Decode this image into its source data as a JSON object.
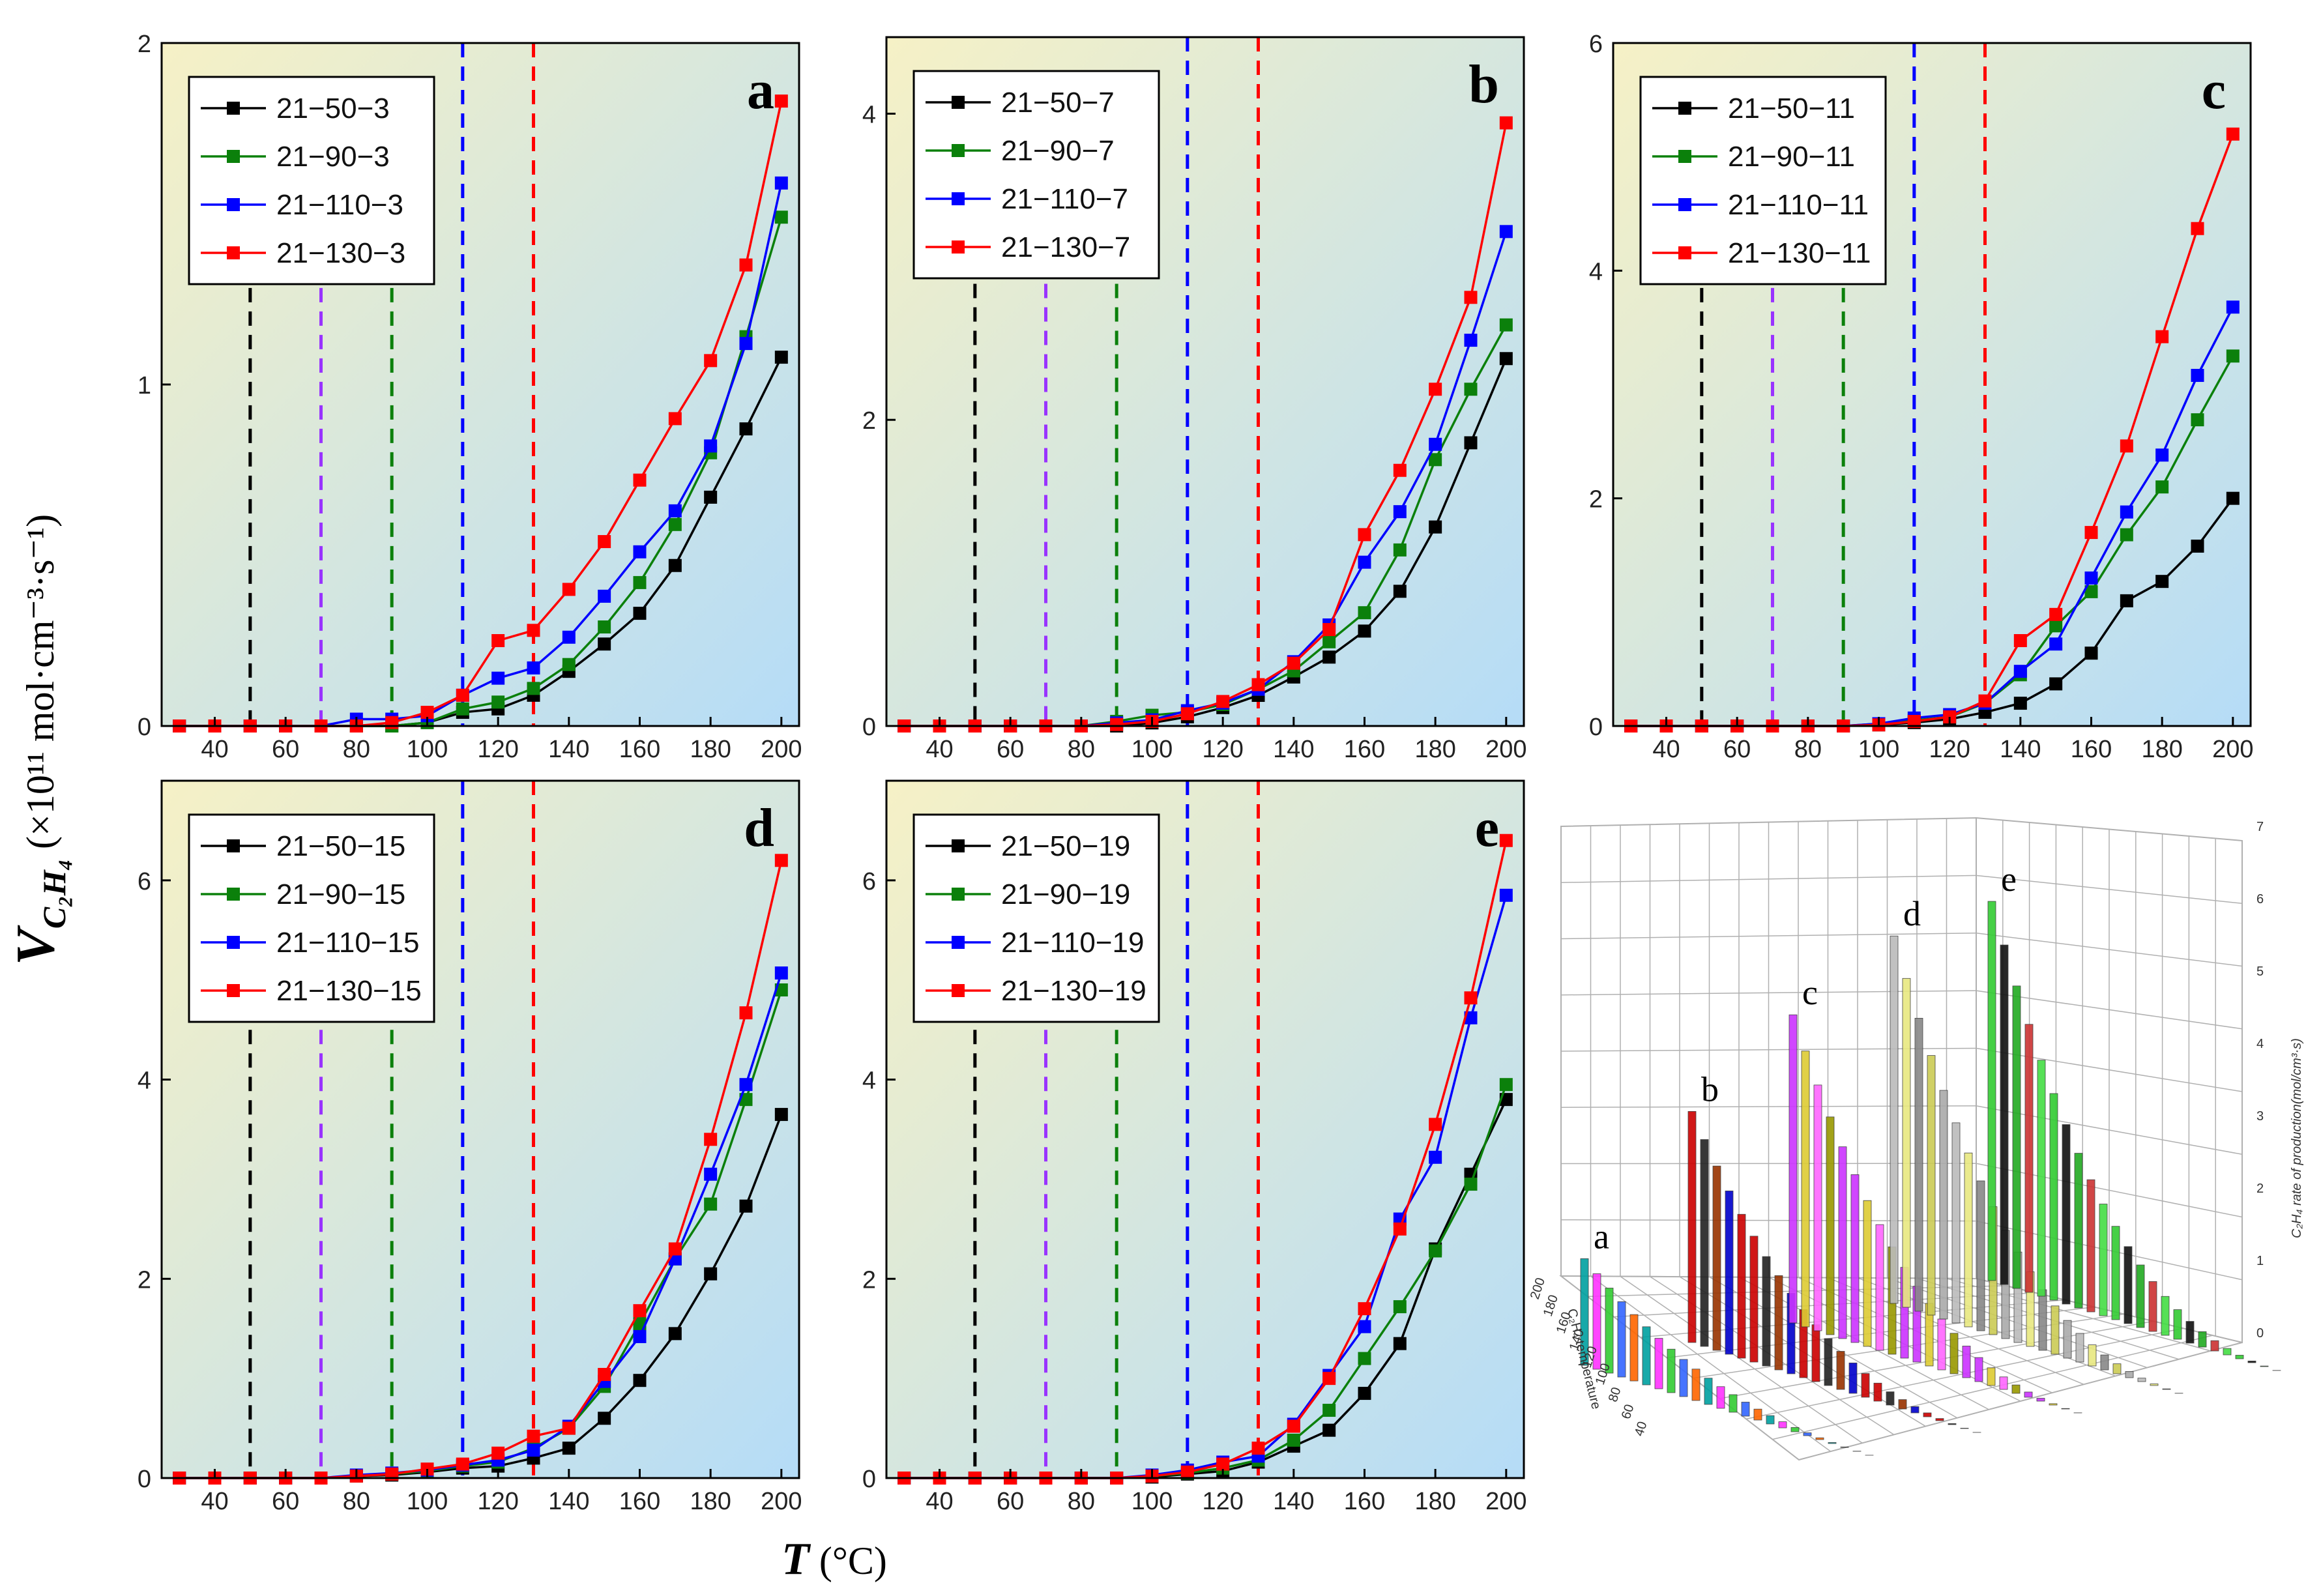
{
  "figure": {
    "y_axis_label_main": "V",
    "y_axis_label_sub": "C₂H₄",
    "y_axis_label_units": " (×10¹¹ mol·cm⁻³·s⁻¹)",
    "x_axis_label_main": "T",
    "x_axis_label_units": " (°C)"
  },
  "colors": {
    "black": "#000000",
    "green": "#0b800b",
    "blue": "#0000ff",
    "red": "#ff0000",
    "purple": "#9933ff",
    "bg_top_left": "#f6f1c6",
    "bg_bottom_right": "#b5dcf7"
  },
  "chart_data": [
    {
      "type": "line",
      "panel": "a",
      "xlim": [
        25,
        205
      ],
      "ylim": [
        0,
        2
      ],
      "xticks": [
        40,
        60,
        80,
        100,
        120,
        140,
        160,
        180,
        200
      ],
      "yticks": [
        0,
        1,
        2
      ],
      "x": [
        30,
        40,
        50,
        60,
        70,
        80,
        90,
        100,
        110,
        120,
        130,
        140,
        150,
        160,
        170,
        180,
        190,
        200
      ],
      "vlines": [
        {
          "x": 50,
          "color": "#000000"
        },
        {
          "x": 70,
          "color": "#9933ff"
        },
        {
          "x": 90,
          "color": "#0b800b"
        },
        {
          "x": 110,
          "color": "#0000ff"
        },
        {
          "x": 130,
          "color": "#ff0000"
        }
      ],
      "series": [
        {
          "name": "21−50−3",
          "color": "#000000",
          "values": [
            0,
            0,
            0,
            0,
            0,
            0,
            0,
            0.01,
            0.04,
            0.05,
            0.09,
            0.16,
            0.24,
            0.33,
            0.47,
            0.67,
            0.87,
            1.08
          ]
        },
        {
          "name": "21−90−3",
          "color": "#0b800b",
          "values": [
            0,
            0,
            0,
            0,
            0,
            0,
            0,
            0.01,
            0.05,
            0.07,
            0.11,
            0.18,
            0.29,
            0.42,
            0.59,
            0.8,
            1.14,
            1.49
          ]
        },
        {
          "name": "21−110−3",
          "color": "#0000ff",
          "values": [
            0,
            0,
            0,
            0,
            0,
            0.02,
            0.02,
            0.03,
            0.09,
            0.14,
            0.17,
            0.26,
            0.38,
            0.51,
            0.63,
            0.82,
            1.12,
            1.59
          ]
        },
        {
          "name": "21−130−3",
          "color": "#ff0000",
          "values": [
            0,
            0,
            0,
            0,
            0,
            0,
            0.01,
            0.04,
            0.09,
            0.25,
            0.28,
            0.4,
            0.54,
            0.72,
            0.9,
            1.07,
            1.35,
            1.83
          ]
        }
      ]
    },
    {
      "type": "line",
      "panel": "b",
      "xlim": [
        25,
        205
      ],
      "ylim": [
        0,
        4.5
      ],
      "xticks": [
        40,
        60,
        80,
        100,
        120,
        140,
        160,
        180,
        200
      ],
      "yticks": [
        0,
        2,
        4
      ],
      "x": [
        30,
        40,
        50,
        60,
        70,
        80,
        90,
        100,
        110,
        120,
        130,
        140,
        150,
        160,
        170,
        180,
        190,
        200
      ],
      "vlines": [
        {
          "x": 50,
          "color": "#000000"
        },
        {
          "x": 70,
          "color": "#9933ff"
        },
        {
          "x": 90,
          "color": "#0b800b"
        },
        {
          "x": 110,
          "color": "#0000ff"
        },
        {
          "x": 130,
          "color": "#ff0000"
        }
      ],
      "series": [
        {
          "name": "21−50−7",
          "color": "#000000",
          "values": [
            0,
            0,
            0,
            0,
            0,
            0,
            0,
            0.02,
            0.06,
            0.12,
            0.2,
            0.32,
            0.45,
            0.62,
            0.88,
            1.3,
            1.85,
            2.4
          ]
        },
        {
          "name": "21−90−7",
          "color": "#0b800b",
          "values": [
            0,
            0,
            0,
            0,
            0,
            0,
            0.03,
            0.07,
            0.09,
            0.14,
            0.24,
            0.36,
            0.55,
            0.74,
            1.15,
            1.74,
            2.2,
            2.62
          ]
        },
        {
          "name": "21−110−7",
          "color": "#0000ff",
          "values": [
            0,
            0,
            0,
            0,
            0,
            0,
            0.02,
            0.04,
            0.1,
            0.15,
            0.24,
            0.42,
            0.66,
            1.07,
            1.4,
            1.84,
            2.52,
            3.23
          ]
        },
        {
          "name": "21−130−7",
          "color": "#ff0000",
          "values": [
            0,
            0,
            0,
            0,
            0,
            0,
            0.01,
            0.03,
            0.08,
            0.16,
            0.27,
            0.41,
            0.63,
            1.25,
            1.67,
            2.2,
            2.8,
            3.94
          ]
        }
      ]
    },
    {
      "type": "line",
      "panel": "c",
      "xlim": [
        25,
        205
      ],
      "ylim": [
        0,
        6
      ],
      "xticks": [
        40,
        60,
        80,
        100,
        120,
        140,
        160,
        180,
        200
      ],
      "yticks": [
        0,
        2,
        4,
        6
      ],
      "x": [
        30,
        40,
        50,
        60,
        70,
        80,
        90,
        100,
        110,
        120,
        130,
        140,
        150,
        160,
        170,
        180,
        190,
        200
      ],
      "vlines": [
        {
          "x": 50,
          "color": "#000000"
        },
        {
          "x": 70,
          "color": "#9933ff"
        },
        {
          "x": 90,
          "color": "#0b800b"
        },
        {
          "x": 110,
          "color": "#0000ff"
        },
        {
          "x": 130,
          "color": "#ff0000"
        }
      ],
      "series": [
        {
          "name": "21−50−11",
          "color": "#000000",
          "values": [
            0,
            0,
            0,
            0,
            0,
            0,
            0,
            0.01,
            0.03,
            0.06,
            0.12,
            0.2,
            0.37,
            0.64,
            1.1,
            1.27,
            1.58,
            2.0
          ]
        },
        {
          "name": "21−90−11",
          "color": "#0b800b",
          "values": [
            0,
            0,
            0,
            0,
            0,
            0,
            0,
            0.02,
            0.05,
            0.08,
            0.2,
            0.45,
            0.88,
            1.18,
            1.68,
            2.1,
            2.69,
            3.25
          ]
        },
        {
          "name": "21−110−11",
          "color": "#0000ff",
          "values": [
            0,
            0,
            0,
            0,
            0,
            0,
            0,
            0.02,
            0.07,
            0.1,
            0.2,
            0.48,
            0.72,
            1.3,
            1.88,
            2.38,
            3.08,
            3.68
          ]
        },
        {
          "name": "21−130−11",
          "color": "#ff0000",
          "values": [
            0,
            0,
            0,
            0,
            0,
            0,
            0,
            0.01,
            0.04,
            0.08,
            0.22,
            0.75,
            0.98,
            1.7,
            2.46,
            3.42,
            4.37,
            5.2
          ]
        }
      ]
    },
    {
      "type": "line",
      "panel": "d",
      "xlim": [
        25,
        205
      ],
      "ylim": [
        0,
        7
      ],
      "xticks": [
        40,
        60,
        80,
        100,
        120,
        140,
        160,
        180,
        200
      ],
      "yticks": [
        0,
        2,
        4,
        6
      ],
      "x": [
        30,
        40,
        50,
        60,
        70,
        80,
        90,
        100,
        110,
        120,
        130,
        140,
        150,
        160,
        170,
        180,
        190,
        200
      ],
      "vlines": [
        {
          "x": 50,
          "color": "#000000"
        },
        {
          "x": 70,
          "color": "#9933ff"
        },
        {
          "x": 90,
          "color": "#0b800b"
        },
        {
          "x": 110,
          "color": "#0000ff"
        },
        {
          "x": 130,
          "color": "#ff0000"
        }
      ],
      "series": [
        {
          "name": "21−50−15",
          "color": "#000000",
          "values": [
            0,
            0,
            0,
            0,
            0,
            0.02,
            0.03,
            0.06,
            0.1,
            0.12,
            0.2,
            0.3,
            0.6,
            0.98,
            1.45,
            2.05,
            2.73,
            3.65
          ]
        },
        {
          "name": "21−90−15",
          "color": "#0b800b",
          "values": [
            0,
            0,
            0,
            0,
            0,
            0.02,
            0.04,
            0.07,
            0.12,
            0.16,
            0.3,
            0.5,
            0.92,
            1.55,
            2.2,
            2.75,
            3.8,
            4.9
          ]
        },
        {
          "name": "21−110−15",
          "color": "#0000ff",
          "values": [
            0,
            0,
            0,
            0,
            0,
            0.03,
            0.05,
            0.08,
            0.13,
            0.18,
            0.28,
            0.52,
            0.97,
            1.42,
            2.2,
            3.05,
            3.95,
            5.07
          ]
        },
        {
          "name": "21−130−15",
          "color": "#ff0000",
          "values": [
            0,
            0,
            0,
            0,
            0,
            0.02,
            0.04,
            0.09,
            0.14,
            0.25,
            0.42,
            0.5,
            1.04,
            1.68,
            2.3,
            3.4,
            4.67,
            6.2
          ]
        }
      ]
    },
    {
      "type": "line",
      "panel": "e",
      "xlim": [
        25,
        205
      ],
      "ylim": [
        0,
        7
      ],
      "xticks": [
        40,
        60,
        80,
        100,
        120,
        140,
        160,
        180,
        200
      ],
      "yticks": [
        0,
        2,
        4,
        6
      ],
      "x": [
        30,
        40,
        50,
        60,
        70,
        80,
        90,
        100,
        110,
        120,
        130,
        140,
        150,
        160,
        170,
        180,
        190,
        200
      ],
      "vlines": [
        {
          "x": 50,
          "color": "#000000"
        },
        {
          "x": 70,
          "color": "#9933ff"
        },
        {
          "x": 90,
          "color": "#0b800b"
        },
        {
          "x": 110,
          "color": "#0000ff"
        },
        {
          "x": 130,
          "color": "#ff0000"
        }
      ],
      "series": [
        {
          "name": "21−50−19",
          "color": "#000000",
          "values": [
            0,
            0,
            0,
            0,
            0,
            0,
            0,
            0.01,
            0.04,
            0.07,
            0.16,
            0.32,
            0.48,
            0.85,
            1.35,
            2.3,
            3.05,
            3.8
          ]
        },
        {
          "name": "21−90−19",
          "color": "#0b800b",
          "values": [
            0,
            0,
            0,
            0,
            0,
            0,
            0,
            0.02,
            0.05,
            0.1,
            0.18,
            0.38,
            0.68,
            1.2,
            1.72,
            2.28,
            2.95,
            3.95
          ]
        },
        {
          "name": "21−110−19",
          "color": "#0000ff",
          "values": [
            0,
            0,
            0,
            0,
            0,
            0,
            0,
            0.03,
            0.08,
            0.16,
            0.22,
            0.54,
            1.03,
            1.52,
            2.6,
            3.22,
            4.62,
            5.85
          ]
        },
        {
          "name": "21−130−19",
          "color": "#ff0000",
          "values": [
            0,
            0,
            0,
            0,
            0,
            0,
            0,
            0.02,
            0.06,
            0.14,
            0.3,
            0.52,
            1.0,
            1.7,
            2.5,
            3.55,
            4.82,
            6.4
          ]
        }
      ]
    },
    {
      "type": "bar",
      "panel": "3d",
      "zlabel": "C₂H₄ rate of production(mol/cm³·s)",
      "xlabel": "C₂H₄ temperature",
      "zticks": [
        0,
        1,
        2,
        3,
        4,
        5,
        6,
        7
      ],
      "yticks": [
        40,
        60,
        80,
        100,
        120,
        140,
        160,
        180,
        200
      ],
      "group_labels": [
        "a",
        "b",
        "c",
        "d",
        "e"
      ],
      "group_peaks": [
        1.8,
        3.9,
        5.2,
        6.2,
        6.4
      ]
    }
  ]
}
